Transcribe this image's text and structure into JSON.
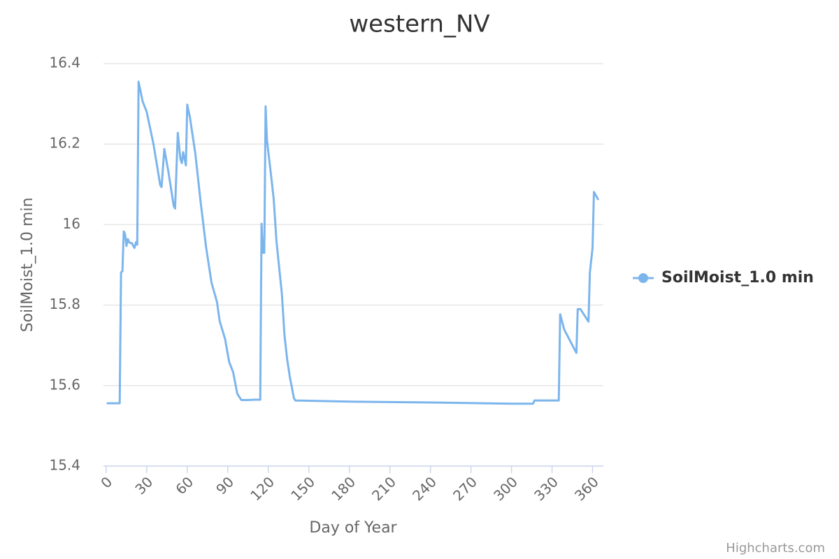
{
  "chart_data": {
    "type": "line",
    "title": "western_NV",
    "x_label": "Day of Year",
    "y_label": "SoilMoist_1.0 min",
    "credits": "Highcharts.com",
    "x": [
      1,
      10,
      11,
      12,
      13,
      14,
      15,
      16,
      17,
      18,
      19,
      20,
      21,
      22,
      23,
      24,
      27,
      30,
      35,
      40,
      41,
      43,
      46,
      50,
      51,
      53,
      55,
      56,
      57,
      59,
      60,
      62,
      66,
      70,
      74,
      78,
      82,
      84,
      88,
      91,
      94,
      97,
      100,
      105,
      110,
      114,
      115,
      116,
      117,
      118,
      119,
      122,
      124,
      126,
      130,
      132,
      134,
      136,
      139,
      140,
      180,
      240,
      300,
      316,
      317,
      335,
      336,
      339,
      348,
      349,
      351,
      357,
      358,
      360,
      361,
      364
    ],
    "series": [
      {
        "name": "SoilMoist_1.0 min",
        "color": "#7cb5ec",
        "values": [
          15.556,
          15.556,
          15.881,
          15.884,
          15.983,
          15.976,
          15.947,
          15.964,
          15.956,
          15.954,
          15.954,
          15.947,
          15.942,
          15.956,
          15.95,
          16.355,
          16.306,
          16.28,
          16.2,
          16.098,
          16.093,
          16.188,
          16.132,
          16.046,
          16.04,
          16.228,
          16.162,
          16.153,
          16.18,
          16.147,
          16.298,
          16.266,
          16.176,
          16.054,
          15.942,
          15.855,
          15.808,
          15.76,
          15.716,
          15.659,
          15.633,
          15.58,
          15.564,
          15.564,
          15.565,
          15.565,
          16.002,
          15.93,
          15.93,
          16.294,
          16.21,
          16.124,
          16.063,
          15.959,
          15.829,
          15.725,
          15.664,
          15.62,
          15.568,
          15.563,
          15.56,
          15.558,
          15.555,
          15.555,
          15.563,
          15.563,
          15.777,
          15.739,
          15.681,
          15.79,
          15.79,
          15.759,
          15.881,
          15.942,
          16.081,
          16.063
        ]
      }
    ],
    "xlim": [
      -2,
      368
    ],
    "xticks": [
      0,
      30,
      60,
      90,
      120,
      150,
      180,
      210,
      240,
      270,
      300,
      330,
      360
    ],
    "ylim": [
      15.4,
      16.4
    ],
    "yticks": [
      15.4,
      15.6,
      15.8,
      16,
      16.2,
      16.4
    ],
    "grid": true,
    "legend": "right"
  }
}
